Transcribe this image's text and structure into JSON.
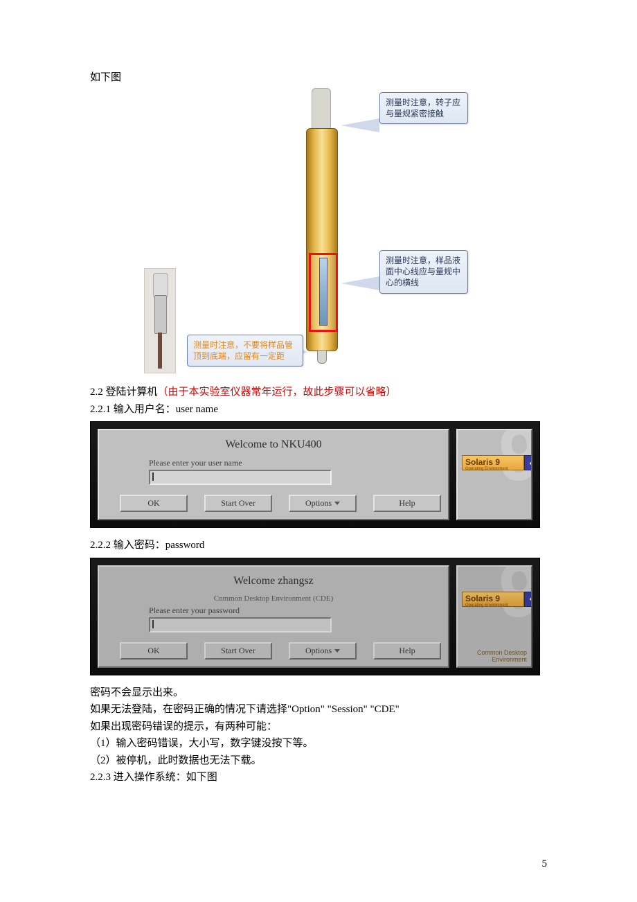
{
  "intro": "如下图",
  "diagram": {
    "callout_top": "测量时注意，转子应与量规紧密接触",
    "callout_mid": "测量时注意，样品液面中心线应与量规中心的横线",
    "callout_bottom": "测量时注意，不要将样品管顶到底端，应留有一定距",
    "colors": {
      "tube_gold_dark": "#a87a1e",
      "tube_gold_light": "#f7df95",
      "highlight_box": "#e11111",
      "callout_border": "#6b7ea0",
      "callout_bg_top": "#eef3fb",
      "callout_bg_bot": "#dfe7f3",
      "callout_text_orange": "#dd8822"
    }
  },
  "sections": {
    "s22_prefix": "2.2 登陆计算机",
    "s22_red": "（由于本实验室仪器常年运行，故此步骤可以省略）",
    "s221": "2.2.1 输入用户名：user name",
    "s222": "2.2.2 输入密码：password",
    "s223": "2.2.3 进入操作系统：如下图"
  },
  "login1": {
    "welcome": "Welcome to NKU400",
    "prompt": "Please enter your user name",
    "buttons": {
      "ok": "OK",
      "start_over": "Start Over",
      "options": "Options",
      "help": "Help"
    },
    "solaris": {
      "label": "Solaris 9",
      "sub": "Operating Environment",
      "sun": "◆Sun"
    }
  },
  "login2": {
    "welcome": "Welcome zhangsz",
    "subline": "Common Desktop Environment (CDE)",
    "prompt": "Please enter your password",
    "buttons": {
      "ok": "OK",
      "start_over": "Start Over",
      "options": "Options",
      "help": "Help"
    },
    "solaris": {
      "label": "Solaris 9",
      "sub": "Operating Environment",
      "sun": "◆Sun"
    },
    "corner": "Common Desktop\nEnvironment"
  },
  "notes": {
    "l1": "密码不会显示出来。",
    "l2": "如果无法登陆，在密码正确的情况下请选择\"Option\" \"Session\" \"CDE\"",
    "l3": "如果出现密码错误的提示，有两种可能：",
    "l4": "（1）输入密码错误，大小写，数字键没按下等。",
    "l5": "（2）被停机，此时数据也无法下载。"
  },
  "page_number": "5"
}
